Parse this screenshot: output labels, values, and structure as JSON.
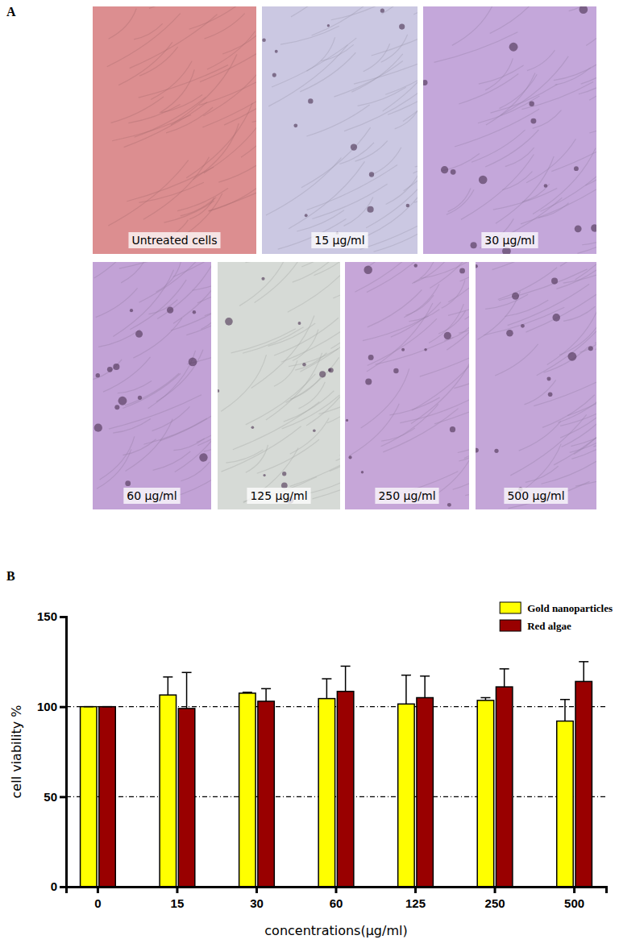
{
  "micrographs": {
    "label": "A",
    "images": [
      {
        "caption": "Untreated cells",
        "color": "#dc8e90"
      },
      {
        "caption": "15 μg/ml",
        "color": "#cbc8e2"
      },
      {
        "caption": "30 μg/ml",
        "color": "#c4a7da"
      },
      {
        "caption": "60 μg/ml",
        "color": "#c2a2d6"
      },
      {
        "caption": "125 μg/ml",
        "color": "#d6dad6"
      },
      {
        "caption": "250 μg/ml",
        "color": "#c6a6d8"
      },
      {
        "caption": "500 μg/ml",
        "color": "#c4a6d8"
      }
    ]
  },
  "chart_data": {
    "type": "bar",
    "panel_label": "B",
    "x_label": "concentrations(μg/ml)",
    "y_label": "cell viability %",
    "categories": [
      "0",
      "15",
      "30",
      "60",
      "125",
      "250",
      "500"
    ],
    "series": [
      {
        "name": "Gold nanoparticles",
        "color": "#ffff00",
        "values": [
          100,
          106.5,
          107.5,
          104.5,
          101.5,
          103.5,
          92
        ],
        "errors": [
          0,
          10,
          0.5,
          11,
          16,
          1.5,
          12
        ]
      },
      {
        "name": "Red algae",
        "color": "#990000",
        "values": [
          100,
          99,
          103,
          108.5,
          105,
          111,
          114
        ],
        "errors": [
          0,
          20,
          7,
          14,
          12,
          10,
          11
        ]
      }
    ],
    "ylim": [
      0,
      150
    ],
    "yticks": [
      0,
      50,
      100,
      150
    ],
    "grid": true,
    "legend": "upper right"
  }
}
